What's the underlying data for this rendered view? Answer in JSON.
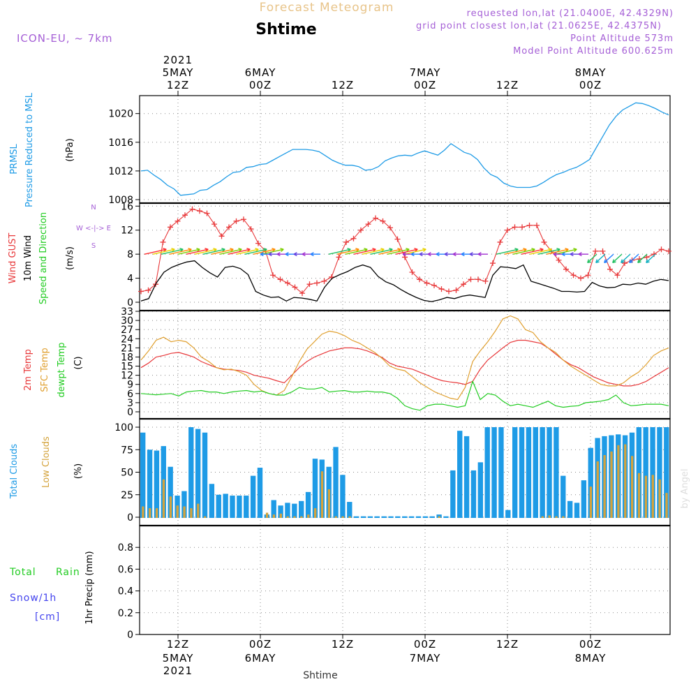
{
  "header": {
    "product": "Forecast Meteogram",
    "location": "Shtime",
    "model": "ICON-EU, ~ 7km",
    "requested": "requested lon,lat (21.0400E, 42.4329N)",
    "gridpoint": "grid point closest lon,lat (21.0625E, 42.4375N)",
    "point_alt": "Point Altitude 573m",
    "model_alt": "Model Point Altitude 600.625m",
    "footer_location": "Shtime",
    "credit": "by Angel"
  },
  "colors": {
    "pressure": "#1e9be6",
    "gust": "#e8383a",
    "wind": "#000000",
    "temp": "#e8383a",
    "sfc": "#e0a030",
    "dew": "#22cc22",
    "total_cloud": "#1e9be6",
    "low_cloud": "#d4a33c",
    "rain": "#22cc22",
    "snow": "#4444ee",
    "header_title": "#e8c48a",
    "header_info": "#a55fd6"
  },
  "time_axis": {
    "year": "2021",
    "ticks": [
      {
        "hour": "12Z",
        "date": "5MAY",
        "year": "2021"
      },
      {
        "hour": "00Z",
        "date": "6MAY",
        "year": ""
      },
      {
        "hour": "12Z",
        "date": "",
        "year": ""
      },
      {
        "hour": "00Z",
        "date": "7MAY",
        "year": ""
      },
      {
        "hour": "12Z",
        "date": "",
        "year": ""
      },
      {
        "hour": "00Z",
        "date": "8MAY",
        "year": ""
      }
    ]
  },
  "chart_data": [
    {
      "type": "line",
      "panel": "pressure",
      "ylabel": [
        "PRMSL",
        "Pressure Reduced to MSL",
        "(hPa)"
      ],
      "yticks": [
        1008,
        1012,
        1016,
        1020
      ],
      "ylim": [
        1008,
        1022.5
      ],
      "grid": true,
      "series": [
        {
          "name": "PRMSL",
          "values": [
            1012.0,
            1012.1,
            1011.4,
            1010.8,
            1010.0,
            1009.5,
            1008.6,
            1008.7,
            1008.8,
            1009.3,
            1009.4,
            1010.0,
            1010.5,
            1011.2,
            1011.8,
            1011.9,
            1012.5,
            1012.6,
            1012.9,
            1013.0,
            1013.5,
            1014.0,
            1014.5,
            1015.0,
            1015.0,
            1015.0,
            1014.9,
            1014.7,
            1014.1,
            1013.5,
            1013.1,
            1012.8,
            1012.8,
            1012.6,
            1012.1,
            1012.2,
            1012.6,
            1013.4,
            1013.8,
            1014.1,
            1014.2,
            1014.1,
            1014.5,
            1014.8,
            1014.5,
            1014.2,
            1014.9,
            1015.8,
            1015.2,
            1014.6,
            1014.3,
            1013.6,
            1012.4,
            1011.5,
            1011.1,
            1010.3,
            1009.9,
            1009.7,
            1009.7,
            1009.7,
            1009.9,
            1010.4,
            1011.0,
            1011.5,
            1011.8,
            1012.2,
            1012.5,
            1013.0,
            1013.6,
            1015.2,
            1016.8,
            1018.4,
            1019.6,
            1020.5,
            1021.0,
            1021.5,
            1021.4,
            1021.1,
            1020.7,
            1020.2,
            1019.8
          ]
        }
      ]
    },
    {
      "type": "line",
      "panel": "wind",
      "ylabel": [
        "Wind GUST",
        "10m Wind",
        "Speed and Direction",
        "(m/s)"
      ],
      "compass": [
        "N",
        "W <-|-> E",
        "S"
      ],
      "yticks": [
        0,
        4,
        8,
        12,
        16
      ],
      "ylim": [
        0,
        16.5
      ],
      "grid": true,
      "series": [
        {
          "name": "Wind GUST",
          "values": [
            1.8,
            2.0,
            3.0,
            10.0,
            12.5,
            13.5,
            14.5,
            15.5,
            15.2,
            14.8,
            13.0,
            11.0,
            12.5,
            13.5,
            13.8,
            12.2,
            9.8,
            8.5,
            4.5,
            3.8,
            3.2,
            2.5,
            1.5,
            3.0,
            3.2,
            3.5,
            4.2,
            7.5,
            10.0,
            10.6,
            12.0,
            13.0,
            14.0,
            13.5,
            12.4,
            10.5,
            7.5,
            5.0,
            3.8,
            3.2,
            2.8,
            2.2,
            1.8,
            2.0,
            3.0,
            3.8,
            3.8,
            3.5,
            6.5,
            10.0,
            12.0,
            12.5,
            12.5,
            12.8,
            12.8,
            10.0,
            8.5,
            7.0,
            5.5,
            4.5,
            4.0,
            4.5,
            8.5,
            8.5,
            5.5,
            4.5,
            6.5,
            7.0,
            7.2,
            7.5,
            8.0,
            8.8,
            8.5
          ]
        },
        {
          "name": "10m Wind",
          "values": [
            0.2,
            0.6,
            3.2,
            5.0,
            5.8,
            6.3,
            6.7,
            6.9,
            5.8,
            4.9,
            4.2,
            5.8,
            6.0,
            5.6,
            4.6,
            1.8,
            1.2,
            0.8,
            0.9,
            0.2,
            0.8,
            0.7,
            0.5,
            0.2,
            2.5,
            4.0,
            4.6,
            5.1,
            5.8,
            6.2,
            5.8,
            4.3,
            3.4,
            2.9,
            2.1,
            1.4,
            0.8,
            0.3,
            0.1,
            0.4,
            0.8,
            0.6,
            1.0,
            1.2,
            1.0,
            0.8,
            4.5,
            5.9,
            5.8,
            5.6,
            6.2,
            3.5,
            3.1,
            2.7,
            2.3,
            1.8,
            1.8,
            1.7,
            1.8,
            3.3,
            2.7,
            2.4,
            2.5,
            3.0,
            2.9,
            3.2,
            3.0,
            3.5,
            3.8,
            3.6
          ]
        }
      ]
    },
    {
      "type": "line",
      "panel": "temperature",
      "ylabel": [
        "2m Temp",
        "SFC Temp",
        "dewpt Temp",
        "(C)"
      ],
      "yticks": [
        0,
        3,
        6,
        9,
        12,
        15,
        18,
        21,
        24,
        27,
        30,
        33
      ],
      "ylim": [
        0,
        33
      ],
      "grid": true,
      "series": [
        {
          "name": "2m Temp",
          "values": [
            14.5,
            16.0,
            18.0,
            18.5,
            19.2,
            19.5,
            18.8,
            18.0,
            16.5,
            15.5,
            14.5,
            14.0,
            13.8,
            13.6,
            13.0,
            12.0,
            11.5,
            11.0,
            10.2,
            9.5,
            12.0,
            14.5,
            16.5,
            18.0,
            19.0,
            20.0,
            20.5,
            21.0,
            21.0,
            20.7,
            20.0,
            19.0,
            17.8,
            16.0,
            15.0,
            14.5,
            14.0,
            13.0,
            12.0,
            11.0,
            10.2,
            9.8,
            9.5,
            9.0,
            10.0,
            14.0,
            17.0,
            19.0,
            21.0,
            22.8,
            23.5,
            23.5,
            23.0,
            22.5,
            21.0,
            19.0,
            17.0,
            15.5,
            14.5,
            13.0,
            11.5,
            10.5,
            9.5,
            9.0,
            8.5,
            8.5,
            9.0,
            10.0,
            11.5,
            13.0,
            14.5
          ]
        },
        {
          "name": "SFC Temp",
          "values": [
            17.0,
            20.0,
            23.5,
            24.5,
            23.0,
            23.5,
            23.0,
            21.0,
            18.0,
            16.5,
            14.5,
            13.8,
            14.0,
            13.2,
            12.0,
            9.0,
            7.0,
            6.0,
            5.5,
            7.0,
            11.5,
            16.5,
            20.5,
            23.0,
            25.5,
            26.5,
            26.0,
            25.0,
            23.5,
            22.5,
            21.0,
            19.5,
            17.5,
            15.0,
            14.0,
            13.5,
            11.5,
            9.5,
            8.0,
            6.5,
            5.5,
            4.5,
            4.0,
            8.0,
            16.5,
            20.0,
            23.0,
            26.5,
            30.5,
            31.5,
            30.5,
            27.0,
            26.0,
            23.0,
            21.0,
            19.5,
            17.0,
            15.0,
            13.5,
            12.0,
            10.5,
            9.0,
            8.5,
            8.5,
            9.5,
            11.5,
            13.0,
            15.5,
            18.5,
            20.0,
            21.0
          ]
        },
        {
          "name": "dewpt Temp",
          "values": [
            6.0,
            5.8,
            5.6,
            5.8,
            6.0,
            5.2,
            6.5,
            6.8,
            7.0,
            6.5,
            6.5,
            6.0,
            6.5,
            6.8,
            7.0,
            6.5,
            6.8,
            6.0,
            5.5,
            5.5,
            6.5,
            8.0,
            7.5,
            7.5,
            8.0,
            6.5,
            6.8,
            7.0,
            6.5,
            6.5,
            6.8,
            6.5,
            6.5,
            6.0,
            4.5,
            2.0,
            1.0,
            0.5,
            2.0,
            2.5,
            2.5,
            2.0,
            1.5,
            2.0,
            10.0,
            4.0,
            6.0,
            5.5,
            3.5,
            2.0,
            2.5,
            2.0,
            1.5,
            2.5,
            3.5,
            2.0,
            1.5,
            1.8,
            2.0,
            3.0,
            3.2,
            3.5,
            4.0,
            5.5,
            3.0,
            2.0,
            2.2,
            2.5,
            2.5,
            2.5,
            2.0
          ]
        }
      ]
    },
    {
      "type": "bar",
      "panel": "clouds",
      "ylabel": [
        "Total Clouds",
        "Low Clouds",
        "(%)"
      ],
      "yticks": [
        0,
        25,
        50,
        75,
        100
      ],
      "ylim": [
        0,
        100
      ],
      "grid": true,
      "series": [
        {
          "name": "Total Clouds",
          "values": [
            94,
            75,
            74,
            79,
            56,
            24,
            29,
            100,
            98,
            94,
            37,
            25,
            26,
            24,
            24,
            24,
            46,
            55,
            3,
            19,
            13,
            16,
            15,
            18,
            28,
            65,
            64,
            56,
            78,
            47,
            17,
            1,
            1,
            1,
            1,
            1,
            1,
            1,
            1,
            1,
            1,
            1,
            1,
            3,
            1,
            52,
            96,
            90,
            52,
            61,
            100,
            100,
            100,
            8,
            100,
            100,
            100,
            100,
            100,
            100,
            100,
            46,
            18,
            16,
            41,
            77,
            88,
            90,
            91,
            92,
            91,
            94,
            100,
            100,
            100,
            100,
            100
          ]
        },
        {
          "name": "Low Clouds",
          "values": [
            12,
            10,
            10,
            42,
            23,
            13,
            12,
            10,
            15,
            1,
            0,
            0,
            0,
            0,
            0,
            0,
            0,
            0,
            5,
            3,
            4,
            1,
            1,
            1,
            3,
            10,
            51,
            31,
            1,
            1,
            1,
            0,
            0,
            0,
            0,
            0,
            0,
            0,
            0,
            0,
            0,
            0,
            0,
            1,
            0,
            0,
            0,
            0,
            0,
            0,
            0,
            0,
            0,
            0,
            0,
            0,
            0,
            0,
            1,
            2,
            1,
            1,
            0,
            0,
            0,
            34,
            62,
            69,
            73,
            80,
            81,
            68,
            49,
            46,
            47,
            42,
            27
          ]
        }
      ]
    },
    {
      "type": "line",
      "panel": "precipitation",
      "ylabel": [
        "1hr Precip (mm)"
      ],
      "legend": [
        "Total",
        "Rain",
        "Snow/1h",
        "[cm]"
      ],
      "yticks": [
        "0",
        "0.2",
        "0.4",
        "0.6",
        "0.8"
      ],
      "ylim": [
        0,
        1.0
      ],
      "grid": true,
      "series": []
    }
  ]
}
